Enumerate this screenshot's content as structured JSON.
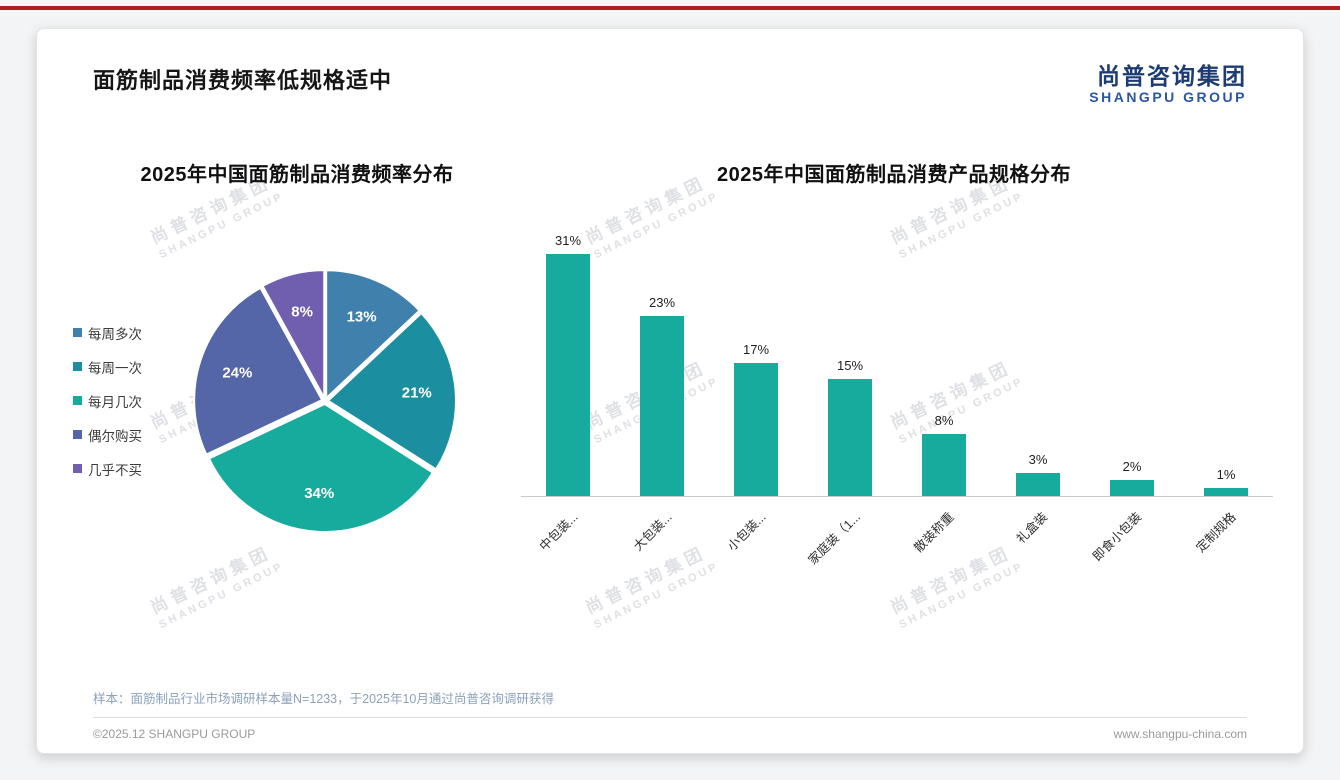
{
  "page": {
    "title": "面筋制品消费频率低规格适中",
    "logo": {
      "name_cn": "尚普咨询集团",
      "name_en": "SHANGPU GROUP"
    },
    "watermark": {
      "line1": "尚普咨询集团",
      "line2": "SHANGPU GROUP"
    },
    "footer": {
      "sample_note": "样本：面筋制品行业市场调研样本量N=1233，于2025年10月通过尚普咨询调研获得",
      "copyright": "©2025.12 SHANGPU GROUP",
      "website": "www.shangpu-china.com"
    },
    "accent_red": "#b01e23",
    "brand_blue": "#1d3c74"
  },
  "chart_data": [
    {
      "type": "pie",
      "title": "2025年中国面筋制品消费频率分布",
      "labels": [
        "每周多次",
        "每周一次",
        "每月几次",
        "偶尔购买",
        "几乎不买"
      ],
      "values": [
        13,
        21,
        34,
        24,
        8
      ],
      "value_labels": [
        "13%",
        "21%",
        "34%",
        "24%",
        "8%"
      ],
      "colors": [
        "#4080ad",
        "#1b8fa0",
        "#17ab9e",
        "#5465a8",
        "#6f5fae"
      ],
      "legend_position": "left",
      "start_angle_deg": -90,
      "direction": "clockwise"
    },
    {
      "type": "bar",
      "title": "2025年中国面筋制品消费产品规格分布",
      "categories": [
        "中包装...",
        "大包装...",
        "小包装...",
        "家庭装（1...",
        "散装称重",
        "礼盒装",
        "即食小包装",
        "定制规格"
      ],
      "values": [
        31,
        23,
        17,
        15,
        8,
        3,
        2,
        1
      ],
      "value_labels": [
        "31%",
        "23%",
        "17%",
        "15%",
        "8%",
        "3%",
        "2%",
        "1%"
      ],
      "bar_color": "#17ab9e",
      "ylim": [
        0,
        35
      ],
      "grid": false,
      "value_label_position": "above",
      "category_label_rotation_deg": 45
    }
  ]
}
